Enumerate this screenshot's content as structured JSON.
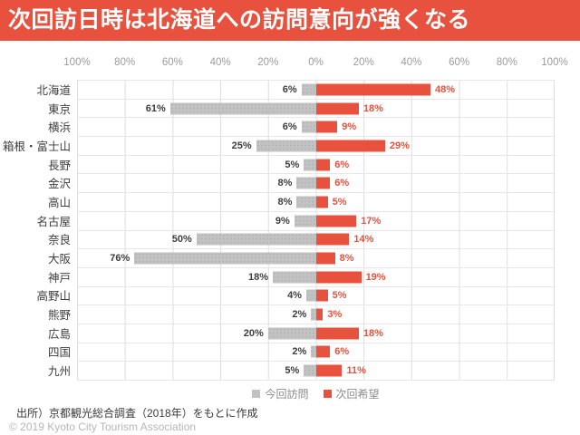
{
  "title": "次回訪日時は北海道への訪問意向が強くなる",
  "colors": {
    "accent_red": "#E8513D",
    "bar_gray": "#C2C2C2",
    "grid": "#DDDDDD",
    "axis_text": "#9B9B9B",
    "label_text": "#3D3D3D"
  },
  "chart_data": {
    "type": "bar",
    "subtype": "diverging-horizontal",
    "title": "次回訪日時は北海道への訪問意向が強くなる",
    "categories": [
      "北海道",
      "東京",
      "横浜",
      "箱根・富士山",
      "長野",
      "金沢",
      "高山",
      "名古屋",
      "奈良",
      "大阪",
      "神戸",
      "高野山",
      "熊野",
      "広島",
      "四国",
      "九州"
    ],
    "series": [
      {
        "name": "今回訪問",
        "color": "#C2C2C2",
        "direction": "left",
        "values": [
          6,
          61,
          6,
          25,
          5,
          8,
          8,
          9,
          50,
          76,
          18,
          4,
          2,
          20,
          2,
          5
        ]
      },
      {
        "name": "次回希望",
        "color": "#E8513D",
        "direction": "right",
        "values": [
          48,
          18,
          9,
          29,
          6,
          6,
          5,
          17,
          14,
          8,
          19,
          5,
          3,
          18,
          6,
          11
        ]
      }
    ],
    "value_suffix": "%",
    "axis_ticks": [
      "100%",
      "80%",
      "60%",
      "40%",
      "20%",
      "0%",
      "20%",
      "40%",
      "60%",
      "80%",
      "100%"
    ],
    "xlim": [
      -100,
      100
    ],
    "grid": "on",
    "legend_position": "bottom-center"
  },
  "source_note": "出所）京都観光総合調査（2018年）をもとに作成",
  "copyright": "© 2019 Kyoto City Tourism Association"
}
